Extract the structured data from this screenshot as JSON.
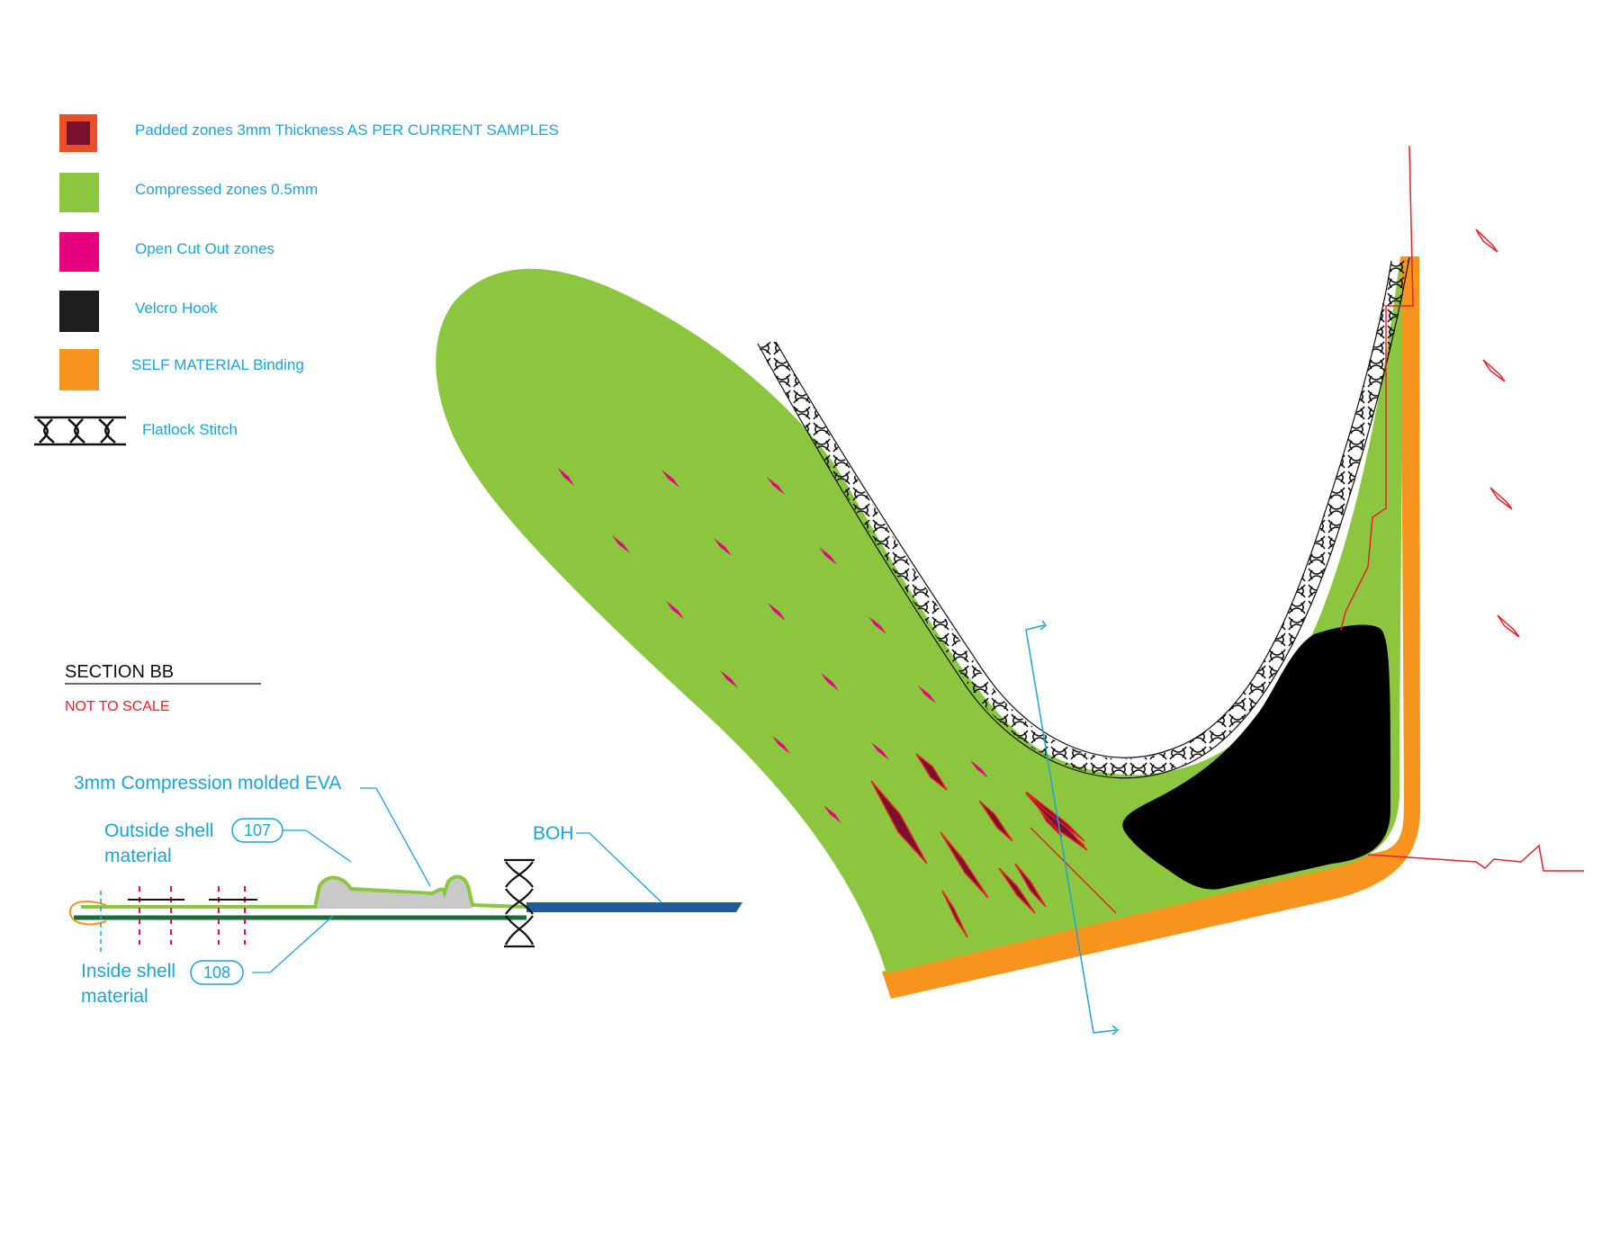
{
  "colors": {
    "padded_fill": "#7a0f2e",
    "padded_border": "#e8502a",
    "compressed": "#8cc63f",
    "cutout": "#e6007e",
    "velcro": "#000000",
    "binding": "#f7941d",
    "callout": "#1aa4dc",
    "section_line": "#e8202a",
    "boh_band": "#1b5e9a",
    "inside_shell": "#1a6b3c",
    "eva": "#c9c9c9"
  },
  "legend": [
    {
      "swatch": "padded",
      "label": "Padded zones 3mm Thickness AS PER CURRENT SAMPLES"
    },
    {
      "swatch": "compressed",
      "label": "Compressed zones 0.5mm"
    },
    {
      "swatch": "cutout",
      "label": "Open Cut Out zones"
    },
    {
      "swatch": "velcro",
      "label": "Velcro Hook"
    },
    {
      "swatch": "binding",
      "label": "SELF MATERIAL Binding"
    },
    {
      "swatch": "flatlock-stitch-icon",
      "label": "Flatlock Stitch"
    }
  ],
  "section": {
    "title": "SECTION BB",
    "note": "NOT TO SCALE",
    "labels": {
      "eva": "3mm Compression molded EVA",
      "outside_line1": "Outside shell",
      "outside_line2": "material",
      "inside_line1": "Inside shell",
      "inside_line2": "material",
      "boh": "BOH"
    },
    "badges": {
      "outside": "107",
      "inside": "108"
    }
  }
}
